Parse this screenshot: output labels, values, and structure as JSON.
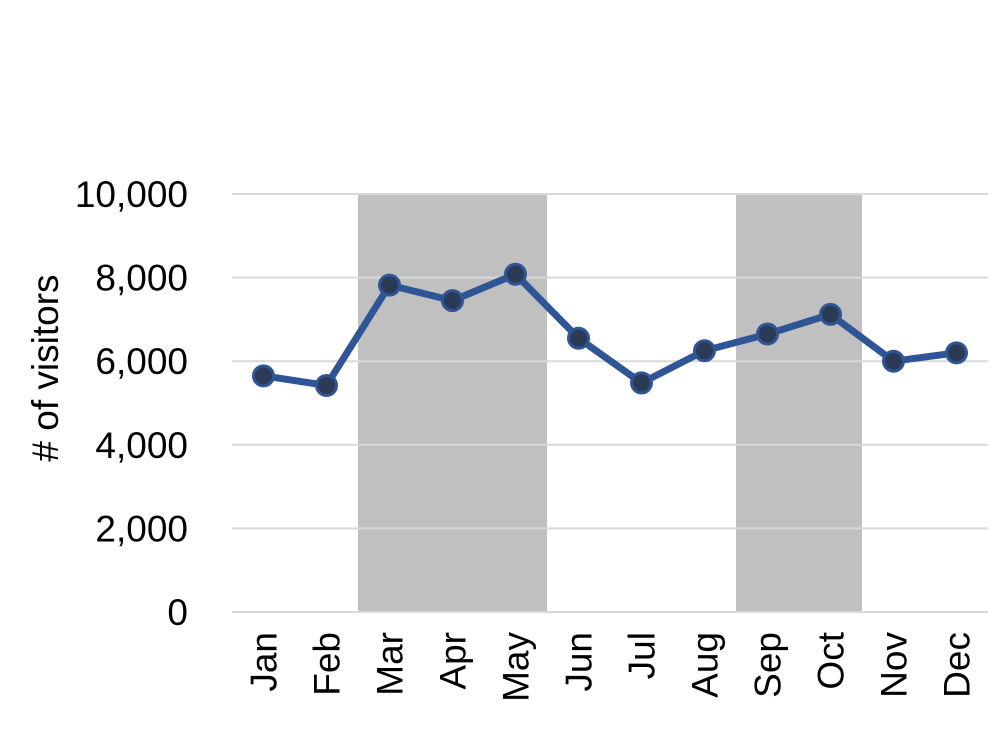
{
  "chart_data": {
    "type": "line",
    "title": "",
    "xlabel": "",
    "ylabel": "# of visitors",
    "categories": [
      "Jan",
      "Feb",
      "Mar",
      "Apr",
      "May",
      "Jun",
      "Jul",
      "Aug",
      "Sep",
      "Oct",
      "Nov",
      "Dec"
    ],
    "series": [
      {
        "values": [
          5650,
          5420,
          7820,
          7450,
          8080,
          6550,
          5480,
          6250,
          6650,
          7120,
          6000,
          6200
        ]
      }
    ],
    "ylim": [
      0,
      10000
    ],
    "yticks": [
      0,
      2000,
      4000,
      6000,
      8000,
      10000
    ],
    "ytick_labels": [
      "0",
      "2,000",
      "4,000",
      "6,000",
      "8,000",
      "10,000"
    ],
    "shaded_ranges": [
      [
        "Mar",
        "May"
      ],
      [
        "Sep",
        "Oct"
      ]
    ],
    "grid": "horizontal",
    "legend": "none",
    "colors": {
      "line": "#2f5597",
      "marker_fill": "#2b3a55",
      "shade": "#c0c0c0",
      "grid": "#d9d9d9"
    }
  }
}
